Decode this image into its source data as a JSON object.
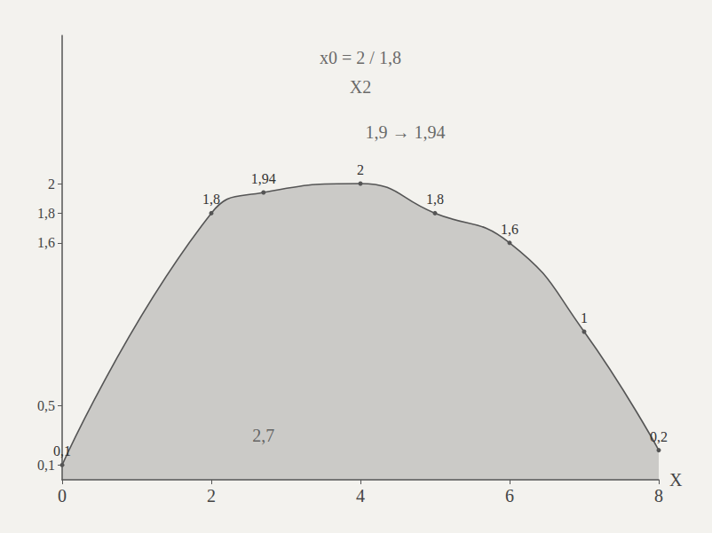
{
  "chart_data": {
    "type": "line",
    "x": [
      0,
      2,
      2.7,
      4,
      5,
      6,
      7,
      8
    ],
    "values": [
      0.1,
      1.8,
      1.94,
      2,
      1.8,
      1.6,
      1,
      0.2
    ],
    "value_labels": [
      "0,1",
      "1,8",
      "1,94",
      "2",
      "1,8",
      "1,6",
      "1",
      "0,2"
    ],
    "data_labels": true,
    "color": "#555555",
    "xlim": [
      0,
      8
    ],
    "xticks": [
      0,
      2,
      4,
      6,
      8
    ],
    "ylim": [
      0,
      3
    ],
    "yticks": [
      {
        "value": 0.1,
        "label": "0,1"
      },
      {
        "value": 0.5,
        "label": "0,5"
      },
      {
        "value": 1.6,
        "label": "1,6"
      },
      {
        "value": 1.8,
        "label": "1,8"
      },
      {
        "value": 2,
        "label": "2"
      }
    ],
    "grid": false,
    "x_label": "X",
    "annotations": [
      {
        "text": "x0 = 2 / 1,8",
        "x": 4,
        "y": 2.85
      },
      {
        "text": "X2",
        "x": 4,
        "y": 2.65
      },
      {
        "text": "1,9 → 1,94",
        "x": 4.6,
        "y": 2.35
      },
      {
        "text": "2,7",
        "x": 2.7,
        "y": 0.3
      }
    ]
  }
}
